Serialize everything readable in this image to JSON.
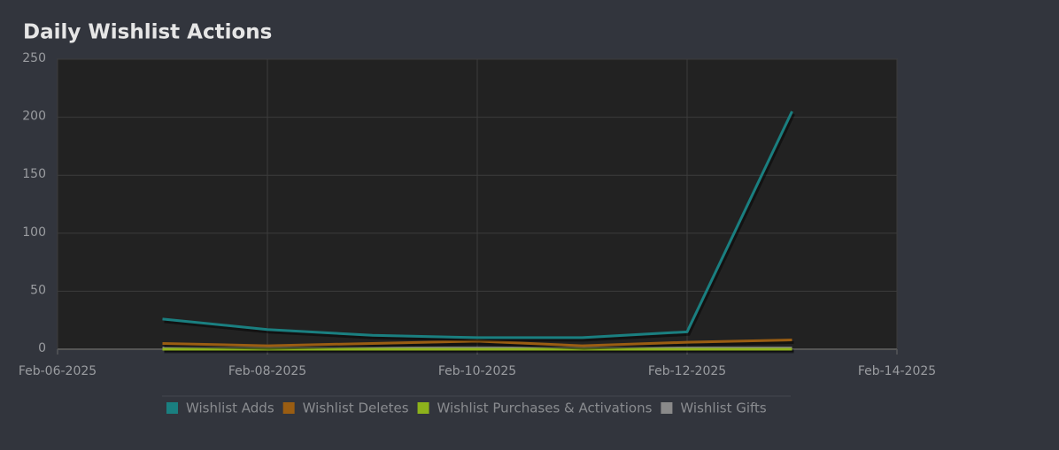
{
  "chart_data": {
    "type": "line",
    "title": "Daily Wishlist Actions",
    "x": [
      "2025-02-07",
      "2025-02-08",
      "2025-02-09",
      "2025-02-10",
      "2025-02-11",
      "2025-02-12",
      "2025-02-13"
    ],
    "series": [
      {
        "name": "Wishlist Adds",
        "color": "#1a7f80",
        "values": [
          26,
          17,
          12,
          10,
          10,
          15,
          205
        ]
      },
      {
        "name": "Wishlist Deletes",
        "color": "#9a5d12",
        "values": [
          5,
          3,
          5,
          7,
          3,
          6,
          8
        ]
      },
      {
        "name": "Wishlist Purchases & Activations",
        "color": "#8db21b",
        "values": [
          0,
          0,
          0,
          0,
          0,
          0,
          0
        ]
      },
      {
        "name": "Wishlist Gifts",
        "color": "#8a8a8a",
        "values": [
          1,
          1,
          1,
          1,
          1,
          1,
          1
        ]
      }
    ],
    "xlim": [
      "2025-02-06",
      "2025-02-14"
    ],
    "xticks": [
      {
        "value": "2025-02-06",
        "label": "Feb-06-2025"
      },
      {
        "value": "2025-02-08",
        "label": "Feb-08-2025"
      },
      {
        "value": "2025-02-10",
        "label": "Feb-10-2025"
      },
      {
        "value": "2025-02-12",
        "label": "Feb-12-2025"
      },
      {
        "value": "2025-02-14",
        "label": "Feb-14-2025"
      }
    ],
    "ylim": [
      0,
      250
    ],
    "yticks": [
      0,
      50,
      100,
      150,
      200,
      250
    ],
    "grid": true
  }
}
